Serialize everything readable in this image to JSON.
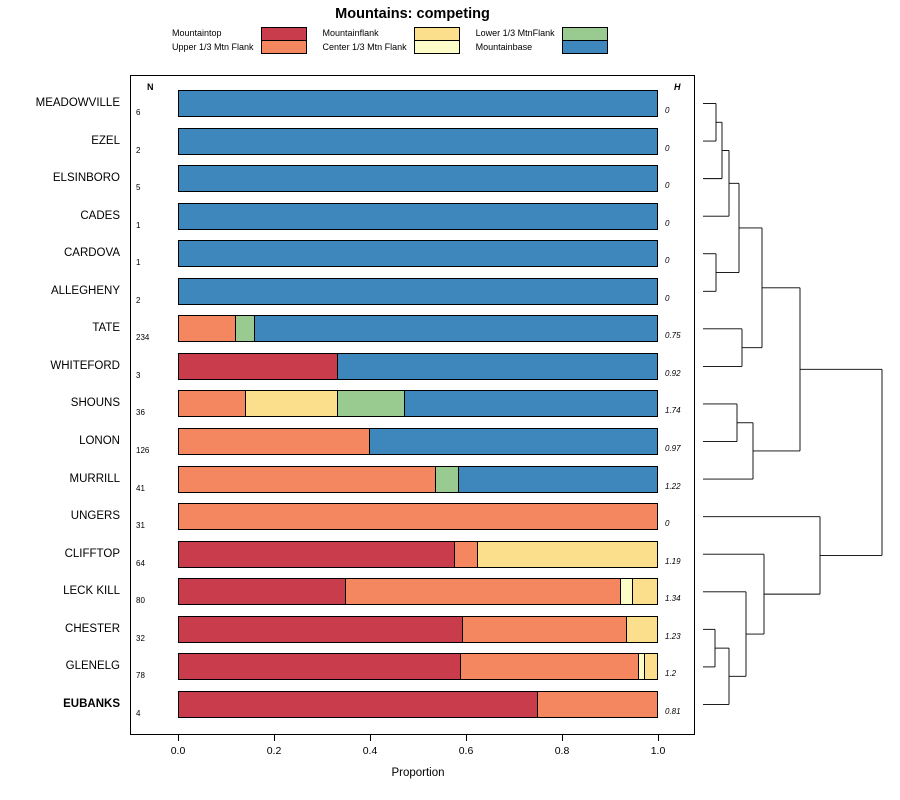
{
  "title": "Mountains: competing",
  "chart_data": {
    "type": "bar",
    "orientation": "horizontal-stacked",
    "title": "Mountains: competing",
    "xlabel": "Proportion",
    "xlim": [
      0,
      1
    ],
    "x_ticks": [
      "0.0",
      "0.2",
      "0.4",
      "0.6",
      "0.8",
      "1.0"
    ],
    "grid": false,
    "legend_position": "top",
    "n_header": "N",
    "h_header": "H",
    "colors": {
      "mountaintop": "#C83C4B",
      "upper13": "#F4875F",
      "mountainflank": "#FBDF8C",
      "center13": "#FCFCC8",
      "lower13": "#99CA90",
      "base": "#3E87BD"
    },
    "legend": {
      "columns": [
        [
          {
            "label": "Mountaintop",
            "color": "mountaintop"
          },
          {
            "label": "Upper 1/3 Mtn Flank",
            "color": "upper13"
          }
        ],
        [
          {
            "label": "Mountainflank",
            "color": "mountainflank"
          },
          {
            "label": "Center 1/3 Mtn Flank",
            "color": "center13"
          }
        ],
        [
          {
            "label": "Lower 1/3 MtnFlank",
            "color": "lower13"
          },
          {
            "label": "Mountainbase",
            "color": "base"
          }
        ]
      ]
    },
    "rows": [
      {
        "label": "MEADOWVILLE",
        "n": "6",
        "h": "0",
        "bold": false,
        "segments": [
          {
            "c": "base",
            "v": 1.0
          }
        ]
      },
      {
        "label": "EZEL",
        "n": "2",
        "h": "0",
        "bold": false,
        "segments": [
          {
            "c": "base",
            "v": 1.0
          }
        ]
      },
      {
        "label": "ELSINBORO",
        "n": "5",
        "h": "0",
        "bold": false,
        "segments": [
          {
            "c": "base",
            "v": 1.0
          }
        ]
      },
      {
        "label": "CADES",
        "n": "1",
        "h": "0",
        "bold": false,
        "segments": [
          {
            "c": "base",
            "v": 1.0
          }
        ]
      },
      {
        "label": "CARDOVA",
        "n": "1",
        "h": "0",
        "bold": false,
        "segments": [
          {
            "c": "base",
            "v": 1.0
          }
        ]
      },
      {
        "label": "ALLEGHENY",
        "n": "2",
        "h": "0",
        "bold": false,
        "segments": [
          {
            "c": "base",
            "v": 1.0
          }
        ]
      },
      {
        "label": "TATE",
        "n": "234",
        "h": "0.75",
        "bold": false,
        "segments": [
          {
            "c": "upper13",
            "v": 0.12
          },
          {
            "c": "lower13",
            "v": 0.04
          },
          {
            "c": "base",
            "v": 0.84
          }
        ]
      },
      {
        "label": "WHITEFORD",
        "n": "3",
        "h": "0.92",
        "bold": false,
        "segments": [
          {
            "c": "mountaintop",
            "v": 0.333
          },
          {
            "c": "base",
            "v": 0.667
          }
        ]
      },
      {
        "label": "SHOUNS",
        "n": "36",
        "h": "1.74",
        "bold": false,
        "segments": [
          {
            "c": "upper13",
            "v": 0.14
          },
          {
            "c": "mountainflank",
            "v": 0.193
          },
          {
            "c": "lower13",
            "v": 0.14
          },
          {
            "c": "base",
            "v": 0.527
          }
        ]
      },
      {
        "label": "LONON",
        "n": "126",
        "h": "0.97",
        "bold": false,
        "segments": [
          {
            "c": "upper13",
            "v": 0.4
          },
          {
            "c": "base",
            "v": 0.6
          }
        ]
      },
      {
        "label": "MURRILL",
        "n": "41",
        "h": "1.22",
        "bold": false,
        "segments": [
          {
            "c": "upper13",
            "v": 0.537
          },
          {
            "c": "lower13",
            "v": 0.049
          },
          {
            "c": "base",
            "v": 0.414
          }
        ]
      },
      {
        "label": "UNGERS",
        "n": "31",
        "h": "0",
        "bold": false,
        "segments": [
          {
            "c": "upper13",
            "v": 1.0
          }
        ]
      },
      {
        "label": "CLIFFTOP",
        "n": "64",
        "h": "1.19",
        "bold": false,
        "segments": [
          {
            "c": "mountaintop",
            "v": 0.578
          },
          {
            "c": "upper13",
            "v": 0.047
          },
          {
            "c": "mountainflank",
            "v": 0.375
          }
        ]
      },
      {
        "label": "LECK KILL",
        "n": "80",
        "h": "1.34",
        "bold": false,
        "segments": [
          {
            "c": "mountaintop",
            "v": 0.35
          },
          {
            "c": "upper13",
            "v": 0.575
          },
          {
            "c": "center13",
            "v": 0.025
          },
          {
            "c": "mountainflank",
            "v": 0.05
          }
        ]
      },
      {
        "label": "CHESTER",
        "n": "32",
        "h": "1.23",
        "bold": false,
        "segments": [
          {
            "c": "mountaintop",
            "v": 0.594
          },
          {
            "c": "upper13",
            "v": 0.344
          },
          {
            "c": "mountainflank",
            "v": 0.062
          }
        ]
      },
      {
        "label": "GLENELG",
        "n": "78",
        "h": "1.2",
        "bold": false,
        "segments": [
          {
            "c": "mountaintop",
            "v": 0.59
          },
          {
            "c": "upper13",
            "v": 0.372
          },
          {
            "c": "center13",
            "v": 0.013
          },
          {
            "c": "mountainflank",
            "v": 0.025
          }
        ]
      },
      {
        "label": "EUBANKS",
        "n": "4",
        "h": "0.81",
        "bold": true,
        "segments": [
          {
            "c": "mountaintop",
            "v": 0.75
          },
          {
            "c": "upper13",
            "v": 0.25
          }
        ]
      }
    ],
    "dendrogram": {
      "leaf_x": 703,
      "merges": [
        {
          "a": "L0",
          "b": "L1",
          "x": 716
        },
        {
          "a": "M0",
          "b": "L2",
          "x": 722
        },
        {
          "a": "M1",
          "b": "L3",
          "x": 729
        },
        {
          "a": "L4",
          "b": "L5",
          "x": 716
        },
        {
          "a": "M2",
          "b": "M3",
          "x": 739
        },
        {
          "a": "L6",
          "b": "L7",
          "x": 742
        },
        {
          "a": "M4",
          "b": "M5",
          "x": 762
        },
        {
          "a": "L8",
          "b": "L9",
          "x": 737
        },
        {
          "a": "M7",
          "b": "L10",
          "x": 753
        },
        {
          "a": "M6",
          "b": "M8",
          "x": 800
        },
        {
          "a": "L14",
          "b": "L15",
          "x": 715
        },
        {
          "a": "M10",
          "b": "L16",
          "x": 729
        },
        {
          "a": "L13",
          "b": "M11",
          "x": 746
        },
        {
          "a": "L12",
          "b": "M12",
          "x": 764
        },
        {
          "a": "L11",
          "b": "M13",
          "x": 820
        },
        {
          "a": "M9",
          "b": "M14",
          "x": 882
        }
      ]
    }
  }
}
